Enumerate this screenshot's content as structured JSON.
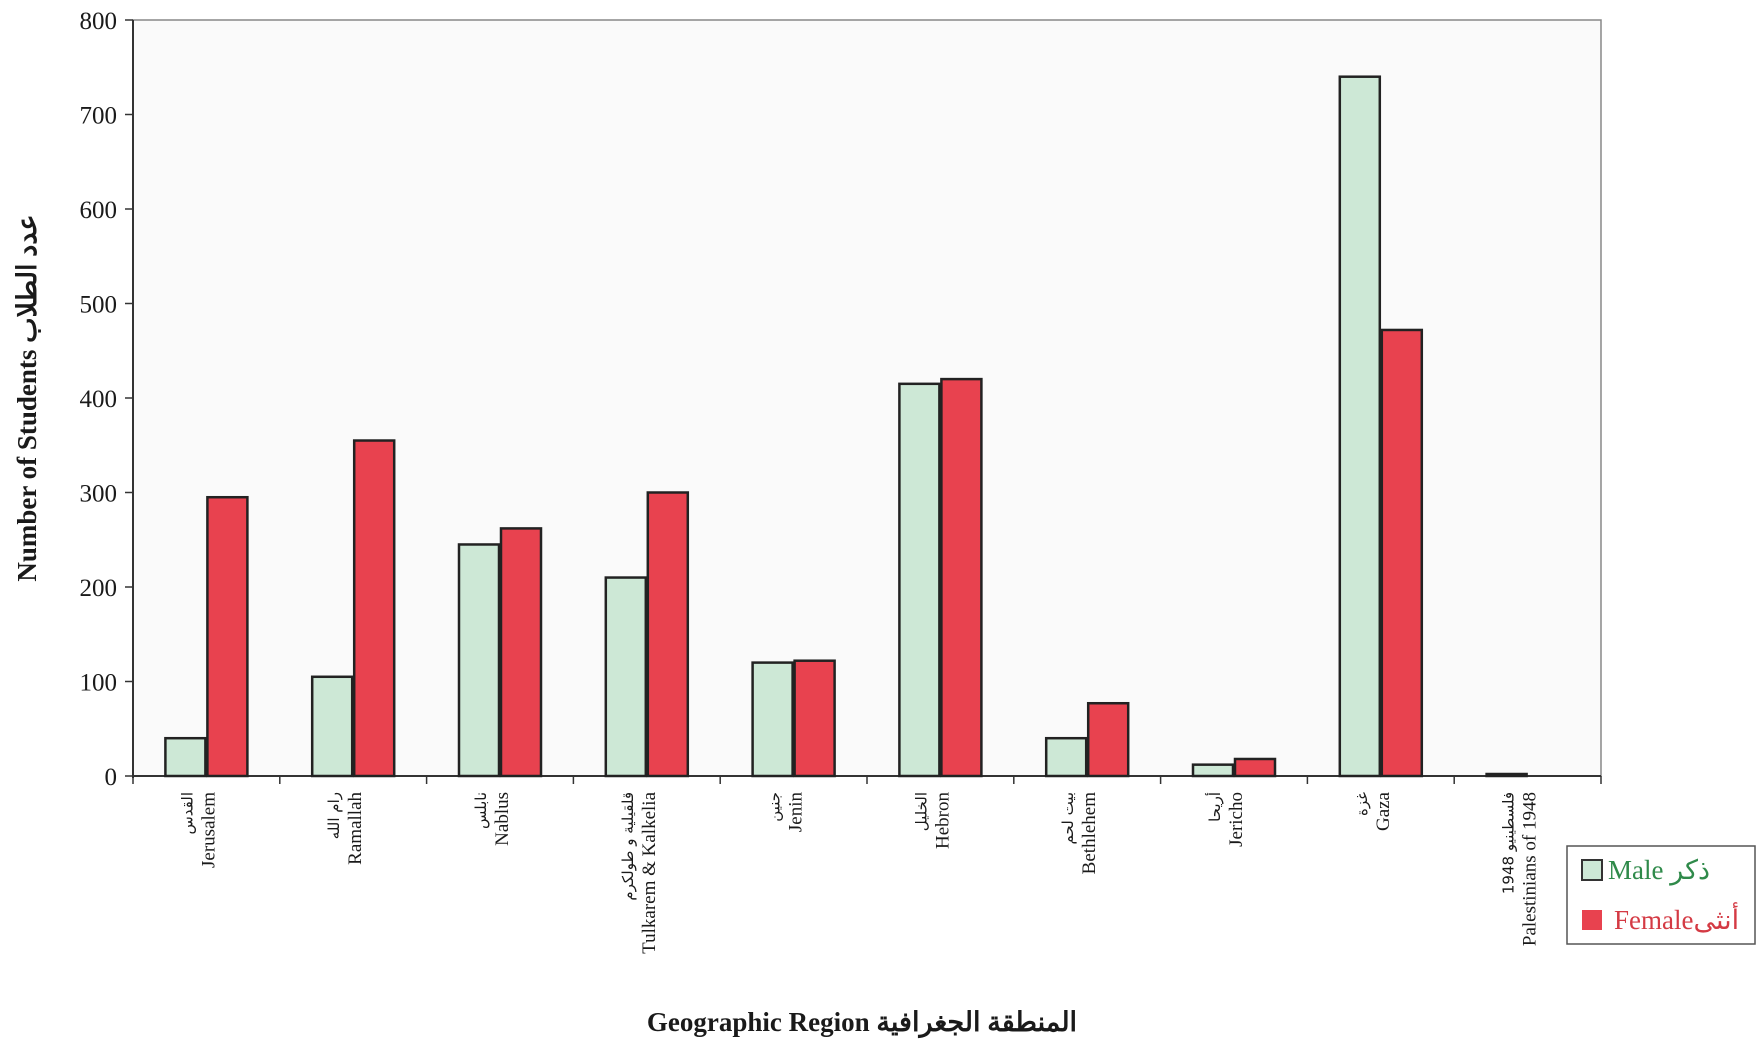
{
  "chart_data": {
    "type": "bar",
    "ylabel": "Number of Students عدد الطلاب",
    "xlabel": "Geographic Region المنطقة الجغرافية",
    "ylim": [
      0,
      800
    ],
    "yticks": [
      0,
      100,
      200,
      300,
      400,
      500,
      600,
      700,
      800
    ],
    "categories": [
      {
        "en": "Jerusalem",
        "ar": "القدس"
      },
      {
        "en": "Ramallah",
        "ar": "رام الله"
      },
      {
        "en": "Nablus",
        "ar": "نابلس"
      },
      {
        "en": "Tulkarem & Kalkelia",
        "ar": "قلقيلية و طولكرم"
      },
      {
        "en": "Jenin",
        "ar": "جنين"
      },
      {
        "en": "Hebron",
        "ar": "الخليل"
      },
      {
        "en": "Bethlehem",
        "ar": "بيت لحم"
      },
      {
        "en": "Jericho",
        "ar": "أريحا"
      },
      {
        "en": "Gaza",
        "ar": "غزة"
      },
      {
        "en": "Palestinians of 1948",
        "ar": "فلسطينيو 1948"
      }
    ],
    "series": [
      {
        "name": "Male ذكر",
        "color": "#cde8d6",
        "values": [
          40,
          105,
          245,
          210,
          120,
          415,
          40,
          12,
          740,
          2
        ]
      },
      {
        "name": "Femaleأنثى",
        "color": "#e8424f",
        "values": [
          295,
          355,
          262,
          300,
          122,
          420,
          77,
          18,
          472,
          0
        ]
      }
    ],
    "grid": false,
    "legend_position": "bottom-right",
    "legend": [
      {
        "label": "Male ذكر",
        "text_color": "#2f8a4a",
        "swatch": "#cde8d6"
      },
      {
        "label": "Femaleأنثى",
        "text_color": "#d43a44",
        "swatch": "#e8424f"
      }
    ]
  }
}
